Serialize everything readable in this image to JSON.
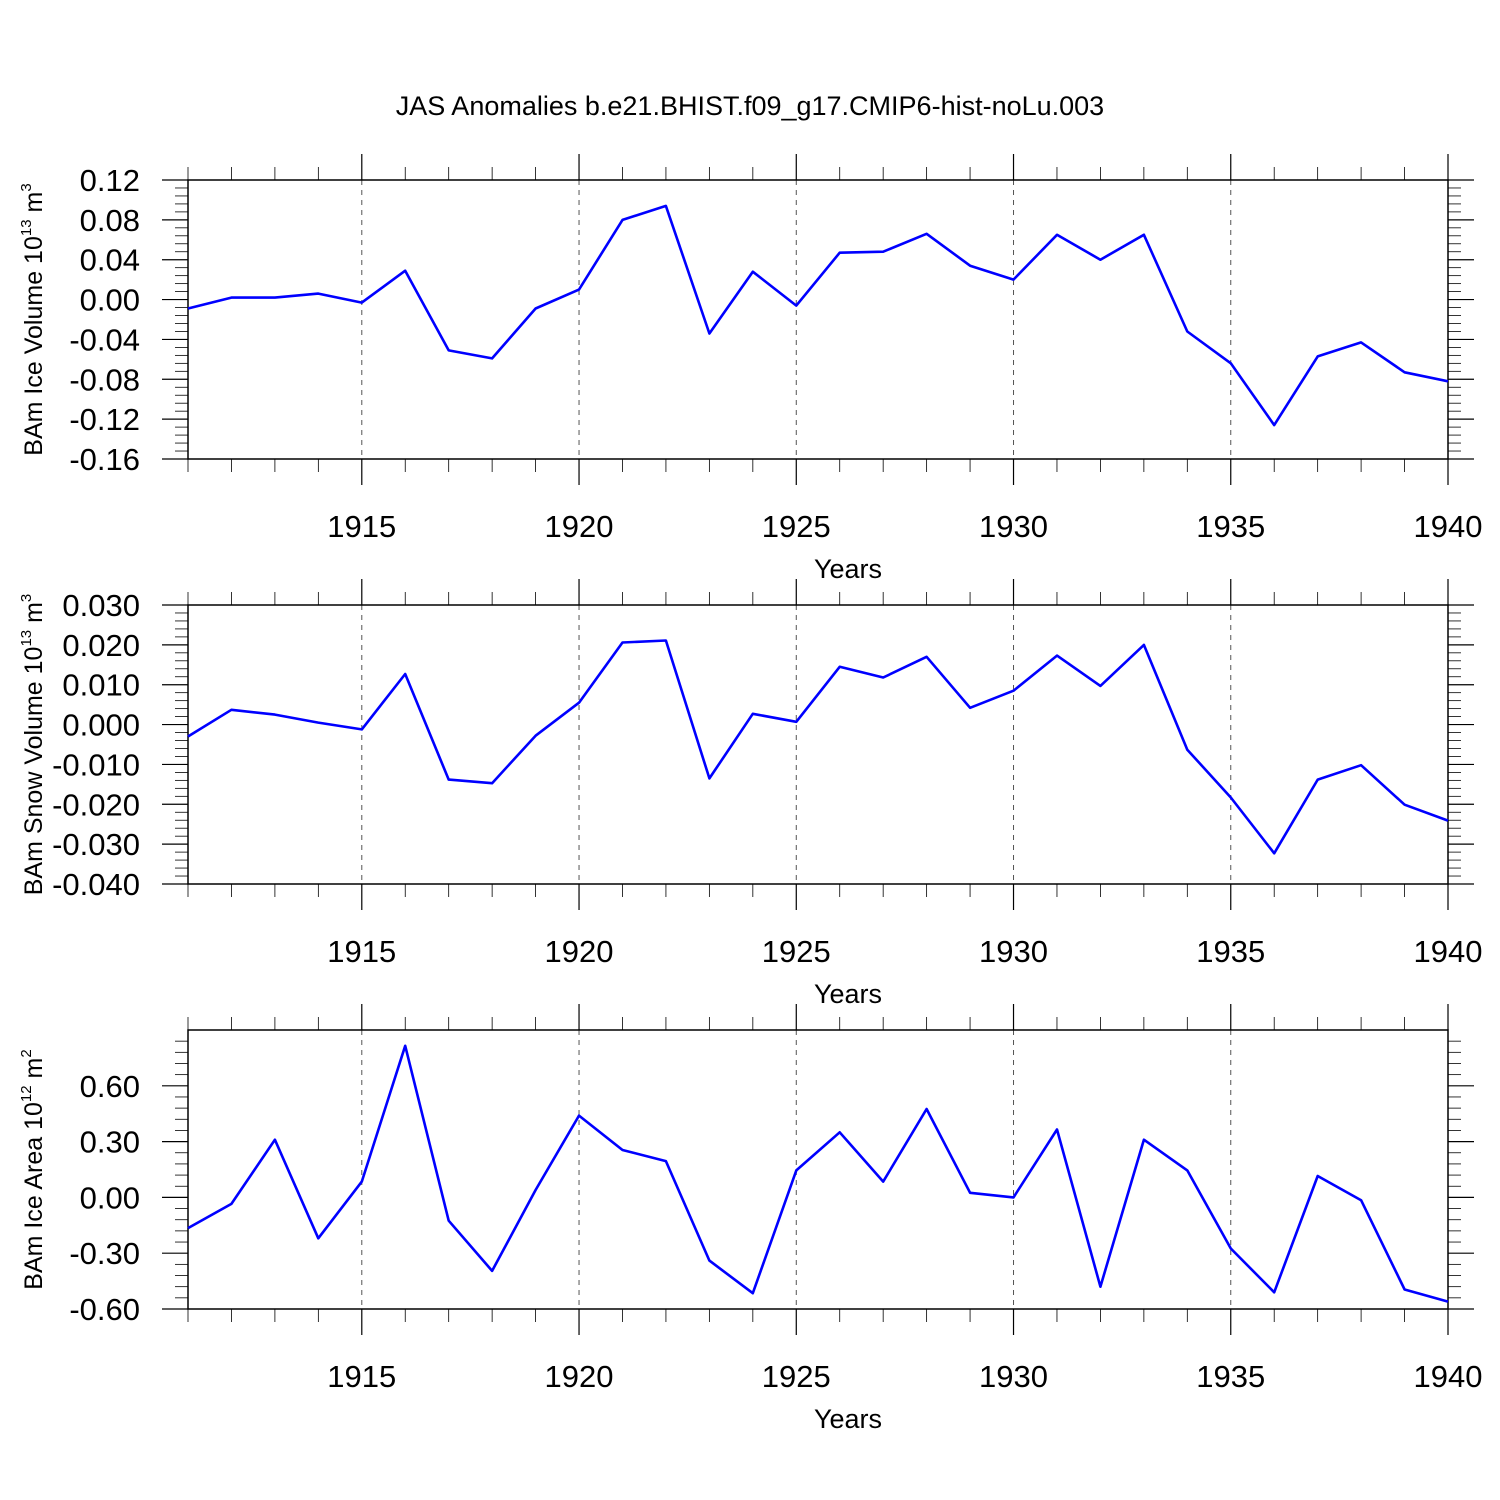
{
  "title": "JAS Anomalies b.e21.BHIST.f09_g17.CMIP6-hist-noLu.003",
  "colors": {
    "line": "#0000ff",
    "axis": "#000000",
    "grid": "#555555"
  },
  "chart_data": [
    {
      "type": "line",
      "ylabel_main": "BAm Ice Volume 10",
      "ylabel_exp": "13",
      "ylabel_unit": "m",
      "ylabel_unit_exp": "3",
      "xlabel": "Years",
      "xlim": [
        1911,
        1940
      ],
      "ylim": [
        -0.16,
        0.12
      ],
      "xticks": [
        1915,
        1920,
        1925,
        1930,
        1935,
        1940
      ],
      "xtick_labels": [
        "1915",
        "1920",
        "1925",
        "1930",
        "1935",
        "1940"
      ],
      "yticks": [
        0.12,
        0.08,
        0.04,
        0.0,
        -0.04,
        -0.08,
        -0.12,
        -0.16
      ],
      "ytick_labels": [
        "0.12",
        "0.08",
        "0.04",
        "0.00",
        "-0.04",
        "-0.08",
        "-0.12",
        "-0.16"
      ],
      "grid_x": [
        1915,
        1920,
        1925,
        1930,
        1935
      ],
      "x": [
        1911,
        1912,
        1913,
        1914,
        1915,
        1916,
        1917,
        1918,
        1919,
        1920,
        1921,
        1922,
        1923,
        1924,
        1925,
        1926,
        1927,
        1928,
        1929,
        1930,
        1931,
        1932,
        1933,
        1934,
        1935,
        1936,
        1937,
        1938,
        1939,
        1940
      ],
      "y": [
        -0.009,
        0.002,
        0.002,
        0.006,
        -0.003,
        0.029,
        -0.051,
        -0.059,
        -0.009,
        0.01,
        0.08,
        0.094,
        -0.034,
        0.028,
        -0.006,
        0.047,
        0.048,
        0.066,
        0.034,
        0.02,
        0.065,
        0.04,
        0.065,
        -0.032,
        -0.064,
        -0.126,
        -0.057,
        -0.043,
        -0.073,
        -0.082
      ]
    },
    {
      "type": "line",
      "ylabel_main": "BAm Snow Volume 10",
      "ylabel_exp": "13",
      "ylabel_unit": "m",
      "ylabel_unit_exp": "3",
      "xlabel": "Years",
      "xlim": [
        1911,
        1940
      ],
      "ylim": [
        -0.04,
        0.03
      ],
      "xticks": [
        1915,
        1920,
        1925,
        1930,
        1935,
        1940
      ],
      "xtick_labels": [
        "1915",
        "1920",
        "1925",
        "1930",
        "1935",
        "1940"
      ],
      "yticks": [
        0.03,
        0.02,
        0.01,
        0.0,
        -0.01,
        -0.02,
        -0.03,
        -0.04
      ],
      "ytick_labels": [
        "0.030",
        "0.020",
        "0.010",
        "0.000",
        "-0.010",
        "-0.020",
        "-0.030",
        "-0.040"
      ],
      "grid_x": [
        1915,
        1920,
        1925,
        1930,
        1935
      ],
      "x": [
        1911,
        1912,
        1913,
        1914,
        1915,
        1916,
        1917,
        1918,
        1919,
        1920,
        1921,
        1922,
        1923,
        1924,
        1925,
        1926,
        1927,
        1928,
        1929,
        1930,
        1931,
        1932,
        1933,
        1934,
        1935,
        1936,
        1937,
        1938,
        1939,
        1940
      ],
      "y": [
        -0.003,
        0.0037,
        0.0025,
        0.0005,
        -0.0012,
        0.0127,
        -0.0138,
        -0.0147,
        -0.0028,
        0.0055,
        0.0206,
        0.0211,
        -0.0135,
        0.0027,
        0.0007,
        0.0145,
        0.0118,
        0.017,
        0.0042,
        0.0085,
        0.0173,
        0.0097,
        0.02,
        -0.0063,
        -0.0183,
        -0.0323,
        -0.0138,
        -0.0102,
        -0.0201,
        -0.0241
      ]
    },
    {
      "type": "line",
      "ylabel_main": "BAm Ice Area 10",
      "ylabel_exp": "12",
      "ylabel_unit": "m",
      "ylabel_unit_exp": "2",
      "xlabel": "Years",
      "xlim": [
        1911,
        1940
      ],
      "ylim": [
        -0.6,
        0.9
      ],
      "xticks": [
        1915,
        1920,
        1925,
        1930,
        1935,
        1940
      ],
      "xtick_labels": [
        "1915",
        "1920",
        "1925",
        "1930",
        "1935",
        "1940"
      ],
      "yticks": [
        0.6,
        0.3,
        0.0,
        -0.3,
        -0.6
      ],
      "ytick_labels": [
        "0.60",
        "0.30",
        "0.00",
        "-0.30",
        "-0.60"
      ],
      "grid_x": [
        1915,
        1920,
        1925,
        1930,
        1935
      ],
      "x": [
        1911,
        1912,
        1913,
        1914,
        1915,
        1916,
        1917,
        1918,
        1919,
        1920,
        1921,
        1922,
        1923,
        1924,
        1925,
        1926,
        1927,
        1928,
        1929,
        1930,
        1931,
        1932,
        1933,
        1934,
        1935,
        1936,
        1937,
        1938,
        1939,
        1940
      ],
      "y": [
        -0.165,
        -0.035,
        0.31,
        -0.22,
        0.085,
        0.815,
        -0.125,
        -0.395,
        0.04,
        0.44,
        0.255,
        0.195,
        -0.34,
        -0.515,
        0.145,
        0.35,
        0.085,
        0.475,
        0.025,
        0.0,
        0.365,
        -0.48,
        0.31,
        0.145,
        -0.275,
        -0.51,
        0.115,
        -0.015,
        -0.495,
        -0.56
      ]
    }
  ]
}
